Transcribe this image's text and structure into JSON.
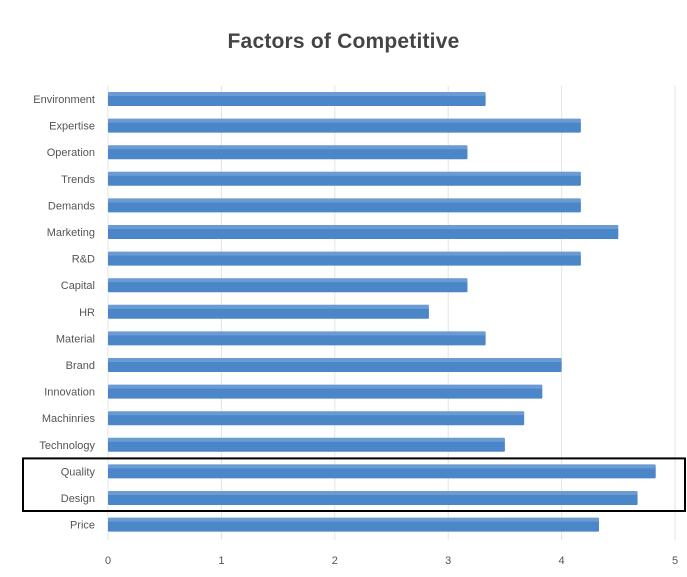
{
  "chart_data": {
    "type": "bar",
    "orientation": "horizontal",
    "title": "Factors of Competitive",
    "xlabel": "",
    "ylabel": "",
    "categories": [
      "Environment",
      "Expertise",
      "Operation",
      "Trends",
      "Demands",
      "Marketing",
      "R&D",
      "Capital",
      "HR",
      "Material",
      "Brand",
      "Innovation",
      "Machinries",
      "Technology",
      "Quality",
      "Design",
      "Price"
    ],
    "values": [
      3.33,
      4.17,
      3.17,
      4.17,
      4.17,
      4.5,
      4.17,
      3.17,
      2.83,
      3.33,
      4.0,
      3.83,
      3.67,
      3.5,
      4.83,
      4.67,
      4.33
    ],
    "xlim": [
      0,
      5
    ],
    "x_ticks": [
      "0",
      "1",
      "2",
      "3",
      "4",
      "5"
    ],
    "grid": "vertical",
    "legend": "none",
    "bar_color": "#4a86c8",
    "highlight": {
      "categories": [
        "Quality",
        "Design"
      ],
      "style": "black rectangle outline"
    }
  }
}
